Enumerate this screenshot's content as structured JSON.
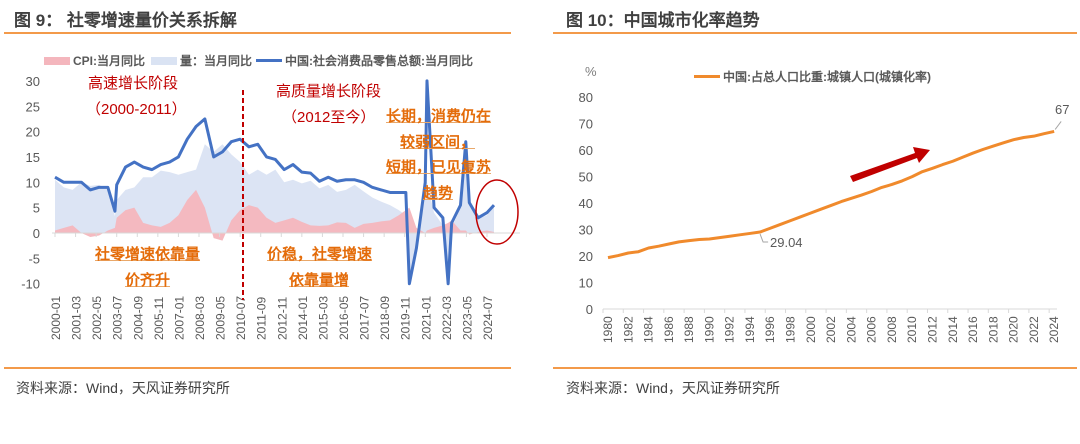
{
  "left": {
    "title": "图 9：  社零增速量价关系拆解",
    "source": "资料来源：Wind，天风证券研究所",
    "annotations": {
      "phase1": "高速增长阶段",
      "phase1_years": "（2000-2011）",
      "phase2": "高质量增长阶段",
      "phase2_years": "（2012至今）",
      "long1": "长期，消费仍在",
      "long2": "较弱区间，",
      "short1": "短期，已见复苏",
      "short2": "趋势",
      "early1": "社零增速依靠量",
      "early2": "价齐升",
      "late1": "价稳，社零增速",
      "late2": "依靠量增"
    }
  },
  "right": {
    "title": "图 10：中国城市化率趋势",
    "source": "资料来源：Wind，天风证券研究所"
  },
  "chart_data": [
    {
      "type": "area+line",
      "title": "社零增速量价关系拆解",
      "ylim": [
        -10,
        30
      ],
      "yticks": [
        30,
        25,
        20,
        15,
        10,
        5,
        0,
        -5,
        -10
      ],
      "xticks": [
        "2000-01",
        "2001-03",
        "2002-05",
        "2003-07",
        "2004-09",
        "2005-11",
        "2007-01",
        "2008-03",
        "2009-05",
        "2010-07",
        "2011-09",
        "2012-11",
        "2014-01",
        "2015-03",
        "2016-05",
        "2017-07",
        "2018-09",
        "2019-11",
        "2021-01",
        "2022-03",
        "2023-05",
        "2024-07"
      ],
      "x": [
        2000,
        2000.5,
        2001,
        2001.5,
        2002,
        2002.5,
        2003,
        2003.4,
        2003.5,
        2004,
        2004.5,
        2005,
        2005.5,
        2006,
        2006.5,
        2007,
        2007.5,
        2008,
        2008.5,
        2009,
        2009.5,
        2010,
        2010.5,
        2011,
        2011.5,
        2012,
        2012.5,
        2013,
        2013.5,
        2014,
        2014.5,
        2015,
        2015.5,
        2016,
        2016.5,
        2017,
        2017.5,
        2018,
        2018.5,
        2019,
        2019.5,
        2019.9,
        2020.1,
        2020.5,
        2021,
        2021.1,
        2021.5,
        2022,
        2022.3,
        2022.5,
        2023,
        2023.3,
        2023.5,
        2024,
        2024.5,
        2024.9
      ],
      "series": [
        {
          "name": "CPI:当月同比",
          "values": [
            0.5,
            1,
            1.5,
            0,
            -0.8,
            -0.5,
            0.5,
            1,
            3,
            4.5,
            5,
            2,
            1.5,
            1.2,
            2,
            3.5,
            6.5,
            8.5,
            5,
            -1,
            -1.5,
            2.5,
            4.5,
            5.5,
            5,
            3,
            2,
            2.5,
            3,
            2.2,
            1.5,
            1.4,
            1.5,
            2.1,
            2,
            1,
            1.8,
            2,
            2.3,
            2.5,
            3.5,
            4.5,
            5,
            1,
            0,
            0.5,
            1,
            1.5,
            2,
            2.5,
            0.5,
            0.5,
            -0.3,
            0.2,
            0.5,
            0.2
          ],
          "color": "#f4b6bd"
        },
        {
          "name": "量：当月同比",
          "values": [
            10.5,
            9,
            8.5,
            10,
            9.3,
            9.5,
            8.5,
            3.3,
            6.5,
            8.5,
            9,
            11,
            11,
            12.3,
            12,
            11.5,
            12,
            12.5,
            17.5,
            16,
            17.5,
            15.5,
            14,
            11.5,
            12.5,
            11.5,
            12.5,
            10,
            10.5,
            9.8,
            10.3,
            8.8,
            9.5,
            8.1,
            8.5,
            9.5,
            8.2,
            7,
            6.2,
            5.5,
            4.5,
            3.5,
            -10,
            -3,
            10,
            10,
            4,
            1.5,
            -10,
            1,
            5,
            17,
            6,
            2.8,
            3.5,
            5.2
          ],
          "color": "#dae3f3"
        },
        {
          "name": "中国:社会消费品零售总额:当月同比",
          "values": [
            11,
            10,
            10,
            10,
            8.5,
            9,
            9,
            4.3,
            9.5,
            13,
            14,
            13,
            12.5,
            13.5,
            14,
            15,
            18.5,
            21,
            22.5,
            15,
            16,
            18,
            18.5,
            17,
            17.5,
            15,
            14.5,
            12.5,
            13.5,
            12,
            11.8,
            10.2,
            11,
            10.2,
            10.5,
            10.5,
            10,
            9,
            8.5,
            8,
            8,
            8,
            -10,
            -3,
            10,
            30,
            5,
            3,
            -10,
            2,
            5.5,
            18,
            6,
            3,
            4,
            5.5
          ],
          "color": "#4472c4"
        }
      ]
    },
    {
      "type": "line",
      "title": "中国城市化率趋势",
      "ylabel": "%",
      "ylim": [
        0,
        80
      ],
      "yticks": [
        0,
        10,
        20,
        30,
        40,
        50,
        60,
        70,
        80
      ],
      "legend": "中国:占总人口比重:城镇人口(城镇化率)",
      "color": "#f08a2c",
      "x": [
        1980,
        1981,
        1982,
        1983,
        1984,
        1985,
        1986,
        1987,
        1988,
        1989,
        1990,
        1991,
        1992,
        1993,
        1994,
        1995,
        1996,
        1997,
        1998,
        1999,
        2000,
        2001,
        2002,
        2003,
        2004,
        2005,
        2006,
        2007,
        2008,
        2009,
        2010,
        2011,
        2012,
        2013,
        2014,
        2015,
        2016,
        2017,
        2018,
        2019,
        2020,
        2021,
        2022,
        2023,
        2024
      ],
      "values": [
        19.39,
        20.16,
        21.13,
        21.62,
        23.01,
        23.71,
        24.52,
        25.32,
        25.81,
        26.21,
        26.41,
        26.94,
        27.46,
        27.99,
        28.51,
        29.04,
        30.48,
        31.91,
        33.35,
        34.78,
        36.22,
        37.66,
        39.09,
        40.53,
        41.76,
        42.99,
        44.34,
        45.89,
        46.99,
        48.34,
        49.95,
        51.83,
        53.1,
        54.49,
        55.75,
        57.33,
        58.84,
        60.24,
        61.5,
        62.71,
        63.89,
        64.72,
        65.22,
        66.16,
        67.0
      ],
      "data_labels": [
        {
          "x": 1995,
          "text": "29.04"
        },
        {
          "x": 2024,
          "text": "67"
        }
      ],
      "xticks": [
        "1980",
        "1982",
        "1984",
        "1986",
        "1988",
        "1990",
        "1992",
        "1994",
        "1996",
        "1998",
        "2000",
        "2002",
        "2004",
        "2006",
        "2008",
        "2010",
        "2012",
        "2014",
        "2016",
        "2018",
        "2020",
        "2022",
        "2024"
      ]
    }
  ]
}
